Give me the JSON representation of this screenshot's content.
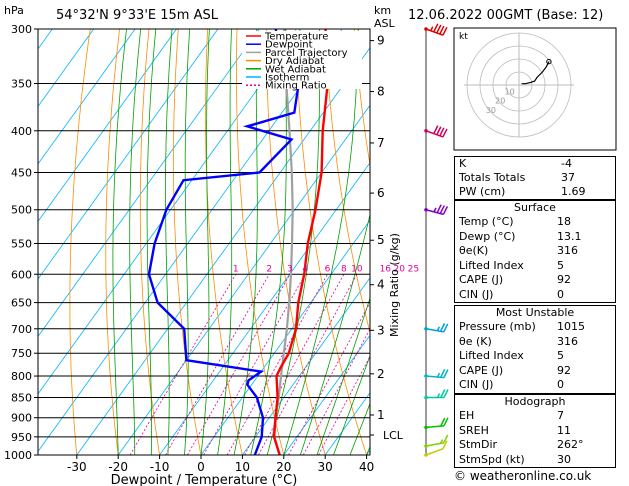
{
  "header": {
    "location": "54°32'N  9°33'E  15m  ASL",
    "datetime": "12.06.2022  00GMT  (Base: 12)",
    "unit_hpa": "hPa",
    "unit_km": "km",
    "unit_asl": "ASL"
  },
  "chart_data": {
    "type": "skew-t",
    "xlabel": "Dewpoint / Temperature (°C)",
    "ylabel_right": "Mixing Ratio (g/kg)",
    "x_ticks": [
      -30,
      -20,
      -10,
      0,
      10,
      20,
      30,
      40
    ],
    "pressure_levels": [
      300,
      350,
      400,
      450,
      500,
      550,
      600,
      650,
      700,
      750,
      800,
      850,
      900,
      950,
      1000
    ],
    "height_km": [
      {
        "km": "1",
        "p": 893
      },
      {
        "km": "2",
        "p": 795
      },
      {
        "km": "3",
        "p": 703
      },
      {
        "km": "4",
        "p": 618
      },
      {
        "km": "5",
        "p": 545
      },
      {
        "km": "6",
        "p": 477
      },
      {
        "km": "7",
        "p": 414
      },
      {
        "km": "8",
        "p": 358
      },
      {
        "km": "9",
        "p": 310
      }
    ],
    "lcl_label": "LCL",
    "lcl_p": 945,
    "mixing_ratio_labels": [
      "1",
      "2",
      "3",
      "4",
      "6",
      "8",
      "10",
      "16",
      "20",
      "25"
    ],
    "legend": [
      {
        "name": "Temperature",
        "color": "#ff0000"
      },
      {
        "name": "Dewpoint",
        "color": "#0000ff"
      },
      {
        "name": "Parcel Trajectory",
        "color": "#a0a0a0"
      },
      {
        "name": "Dry Adiabat",
        "color": "#ff8c00"
      },
      {
        "name": "Wet Adiabat",
        "color": "#00a000"
      },
      {
        "name": "Isotherm",
        "color": "#00b4ff"
      },
      {
        "name": "Mixing Ratio",
        "color": "#e000a0"
      }
    ],
    "temperature": [
      {
        "p": 1000,
        "t": 19
      },
      {
        "p": 950,
        "t": 14.5
      },
      {
        "p": 900,
        "t": 11.5
      },
      {
        "p": 850,
        "t": 8.5
      },
      {
        "p": 800,
        "t": 4.5
      },
      {
        "p": 780,
        "t": 4
      },
      {
        "p": 750,
        "t": 3.5
      },
      {
        "p": 700,
        "t": 1
      },
      {
        "p": 650,
        "t": -3
      },
      {
        "p": 600,
        "t": -6.5
      },
      {
        "p": 550,
        "t": -11
      },
      {
        "p": 500,
        "t": -15
      },
      {
        "p": 450,
        "t": -20
      },
      {
        "p": 400,
        "t": -27
      },
      {
        "p": 350,
        "t": -34
      },
      {
        "p": 320,
        "t": -40
      },
      {
        "p": 300,
        "t": -44
      }
    ],
    "dewpoint": [
      {
        "p": 1000,
        "t": 13
      },
      {
        "p": 950,
        "t": 11.5
      },
      {
        "p": 900,
        "t": 8.5
      },
      {
        "p": 850,
        "t": 3.5
      },
      {
        "p": 820,
        "t": -1
      },
      {
        "p": 810,
        "t": -1.5
      },
      {
        "p": 790,
        "t": 0
      },
      {
        "p": 765,
        "t": -20
      },
      {
        "p": 700,
        "t": -26
      },
      {
        "p": 650,
        "t": -37
      },
      {
        "p": 600,
        "t": -44
      },
      {
        "p": 550,
        "t": -48
      },
      {
        "p": 500,
        "t": -51
      },
      {
        "p": 460,
        "t": -52
      },
      {
        "p": 450,
        "t": -35
      },
      {
        "p": 410,
        "t": -33
      },
      {
        "p": 395,
        "t": -46
      },
      {
        "p": 390,
        "t": -43
      },
      {
        "p": 380,
        "t": -37
      },
      {
        "p": 350,
        "t": -41
      },
      {
        "p": 320,
        "t": -52
      },
      {
        "p": 300,
        "t": -56
      }
    ],
    "parcel": [
      {
        "p": 1000,
        "t": 19
      },
      {
        "p": 945,
        "t": 14
      },
      {
        "p": 900,
        "t": 11.5
      },
      {
        "p": 850,
        "t": 8.8
      },
      {
        "p": 800,
        "t": 5.6
      },
      {
        "p": 750,
        "t": 2.3
      },
      {
        "p": 700,
        "t": -1.2
      },
      {
        "p": 650,
        "t": -5.2
      },
      {
        "p": 600,
        "t": -9.7
      },
      {
        "p": 550,
        "t": -14.8
      },
      {
        "p": 500,
        "t": -20.5
      },
      {
        "p": 450,
        "t": -27.2
      },
      {
        "p": 400,
        "t": -35
      },
      {
        "p": 350,
        "t": -44
      },
      {
        "p": 300,
        "t": -54
      }
    ],
    "wind_barbs": [
      {
        "p": 1000,
        "dir": 250,
        "spd": 10,
        "color": "#c8c800"
      },
      {
        "p": 975,
        "dir": 260,
        "spd": 15,
        "color": "#7fd000"
      },
      {
        "p": 925,
        "dir": 265,
        "spd": 20,
        "color": "#00c000"
      },
      {
        "p": 850,
        "dir": 270,
        "spd": 25,
        "color": "#00c8a0"
      },
      {
        "p": 800,
        "dir": 275,
        "spd": 25,
        "color": "#00b4c8"
      },
      {
        "p": 700,
        "dir": 280,
        "spd": 25,
        "color": "#00a0e0"
      },
      {
        "p": 500,
        "dir": 285,
        "spd": 35,
        "color": "#8000c0"
      },
      {
        "p": 400,
        "dir": 290,
        "spd": 40,
        "color": "#d00060"
      },
      {
        "p": 300,
        "dir": 290,
        "spd": 45,
        "color": "#e00000"
      }
    ],
    "hodograph": {
      "label": "kt",
      "ring_labels": [
        "10",
        "20",
        "30"
      ],
      "points": [
        {
          "u": 2,
          "v": 1
        },
        {
          "u": 5,
          "v": 1
        },
        {
          "u": 9,
          "v": 2
        },
        {
          "u": 12,
          "v": 3
        },
        {
          "u": 14,
          "v": 6
        },
        {
          "u": 18,
          "v": 10
        },
        {
          "u": 21,
          "v": 14
        },
        {
          "u": 23,
          "v": 18
        }
      ]
    }
  },
  "indices": {
    "rows": [
      {
        "k": "K",
        "v": "-4"
      },
      {
        "k": "Totals Totals",
        "v": "37"
      },
      {
        "k": "PW (cm)",
        "v": "1.69"
      }
    ]
  },
  "surface": {
    "title": "Surface",
    "rows": [
      {
        "k": "Temp (°C)",
        "v": "18"
      },
      {
        "k": "Dewp (°C)",
        "v": "13.1"
      },
      {
        "k": "θe(K)",
        "v": "316"
      },
      {
        "k": "Lifted Index",
        "v": "5"
      },
      {
        "k": "CAPE (J)",
        "v": "92"
      },
      {
        "k": "CIN (J)",
        "v": "0"
      }
    ]
  },
  "most_unstable": {
    "title": "Most Unstable",
    "rows": [
      {
        "k": "Pressure (mb)",
        "v": "1015"
      },
      {
        "k": "θe (K)",
        "v": "316"
      },
      {
        "k": "Lifted Index",
        "v": "5"
      },
      {
        "k": "CAPE (J)",
        "v": "92"
      },
      {
        "k": "CIN (J)",
        "v": "0"
      }
    ]
  },
  "hodograph_table": {
    "title": "Hodograph",
    "rows": [
      {
        "k": "EH",
        "v": "7"
      },
      {
        "k": "SREH",
        "v": "11"
      },
      {
        "k": "StmDir",
        "v": "262°"
      },
      {
        "k": "StmSpd (kt)",
        "v": "30"
      }
    ]
  },
  "credit": "© weatheronline.co.uk"
}
